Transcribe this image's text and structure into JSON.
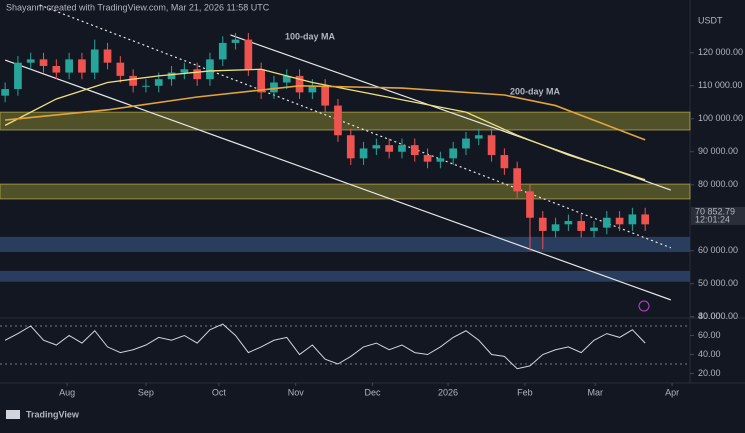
{
  "header": {
    "caption": "Shayanm created with TradingView.com, Mar 21, 2026 11:58 UTC",
    "brand": "TradingView"
  },
  "chart_data": [
    {
      "type": "candlestick",
      "currency": "USDT",
      "up_color": "#26a69a",
      "down_color": "#ef5350",
      "grid": false,
      "open": [
        107000,
        109000,
        117000,
        118000,
        116000,
        114000,
        118000,
        114000,
        121000,
        117000,
        113000,
        110000,
        110000,
        112000,
        114000,
        115000,
        112000,
        118000,
        123000,
        124000,
        115000,
        108000,
        111000,
        113000,
        108000,
        110000,
        104000,
        95000,
        88000,
        91000,
        92000,
        90000,
        92000,
        89000,
        87000,
        88000,
        91000,
        94000,
        95000,
        89000,
        85000,
        78000,
        70000,
        66000,
        68000,
        69000,
        66000,
        67000,
        70000,
        68000,
        71000
      ],
      "high": [
        111000,
        119000,
        120000,
        120000,
        118000,
        120000,
        120000,
        124000,
        123000,
        119000,
        115000,
        112000,
        114000,
        116000,
        117000,
        117000,
        120000,
        125000,
        126000,
        126000,
        117000,
        113000,
        115000,
        115000,
        112000,
        112000,
        106000,
        97000,
        93000,
        94000,
        94000,
        94000,
        94000,
        91000,
        90000,
        93000,
        96000,
        97000,
        97000,
        91000,
        87000,
        80000,
        72000,
        70000,
        71000,
        71000,
        69000,
        72000,
        72000,
        73000,
        73000
      ],
      "low": [
        105000,
        107000,
        115000,
        114000,
        112000,
        112000,
        112000,
        112000,
        115000,
        111000,
        108000,
        108000,
        108000,
        110000,
        112000,
        110000,
        110000,
        116000,
        121000,
        113000,
        106000,
        106000,
        109000,
        106000,
        106000,
        102000,
        93000,
        86000,
        86000,
        89000,
        88000,
        88000,
        87000,
        85000,
        85000,
        86000,
        89000,
        92000,
        87000,
        83000,
        76000,
        60000,
        60500,
        64000,
        66000,
        64000,
        64000,
        65000,
        66000,
        66000,
        66000
      ],
      "close": [
        109000,
        117000,
        118000,
        116000,
        114000,
        118000,
        114000,
        121000,
        117000,
        113000,
        110000,
        110000,
        112000,
        114000,
        115000,
        112000,
        118000,
        123000,
        124000,
        115000,
        108000,
        111000,
        113000,
        108000,
        110000,
        104000,
        95000,
        88000,
        91000,
        92000,
        90000,
        92000,
        89000,
        87000,
        88000,
        91000,
        94000,
        95000,
        89000,
        85000,
        78000,
        70000,
        66000,
        68000,
        69000,
        66000,
        67000,
        70000,
        68000,
        71000,
        68000
      ],
      "series": [
        {
          "name": "100-day MA",
          "color": "#efe07a",
          "x": [
            0,
            4,
            8,
            12,
            16,
            20,
            24,
            28,
            32,
            36,
            40,
            44,
            48,
            50
          ],
          "values": [
            98000,
            106000,
            111000,
            113000,
            114500,
            115000,
            111000,
            108000,
            105000,
            102000,
            95000,
            89000,
            84000,
            81500
          ]
        },
        {
          "name": "200-day MA",
          "color": "#e3a33a",
          "x": [
            0,
            8,
            15,
            23,
            31,
            39,
            43,
            50
          ],
          "values": [
            99600,
            102700,
            106600,
            110000,
            109300,
            107200,
            104000,
            93600
          ]
        }
      ],
      "zones": [
        {
          "from": 96600,
          "to": 102000,
          "color": "#5c5a2a"
        },
        {
          "from": 75700,
          "to": 80200,
          "color": "#5c5a2a"
        },
        {
          "from": 59600,
          "to": 64200,
          "color": "#2e4468"
        },
        {
          "from": 50600,
          "to": 53900,
          "color": "#2e4468"
        }
      ],
      "trendlines": [
        {
          "from": [
            17.6,
            125400
          ],
          "to": [
            52,
            78400
          ],
          "style": "solid"
        },
        {
          "from": [
            2.7,
            134500
          ],
          "to": [
            52,
            60900
          ],
          "style": "dotted"
        },
        {
          "from": [
            0,
            117800
          ],
          "to": [
            52,
            45100
          ],
          "style": "solid"
        }
      ],
      "price_label": {
        "value": 70852.79,
        "label": "70 852.79",
        "countdown": "12:01:24"
      },
      "xlim": [
        -0.4,
        53.5
      ],
      "ylim": [
        39000,
        136000
      ],
      "yticks": [
        {
          "value": 40000,
          "label": "40 000.00"
        },
        {
          "value": 50000,
          "label": "50 000.00"
        },
        {
          "value": 60000,
          "label": "60 000.00"
        },
        {
          "value": 80000,
          "label": "80 000.00"
        },
        {
          "value": 90000,
          "label": "90 000.00"
        },
        {
          "value": 100000,
          "label": "100 000.00"
        },
        {
          "value": 110000,
          "label": "110 000.00"
        },
        {
          "value": 120000,
          "label": "120 000.00"
        }
      ],
      "xticks": [
        {
          "value": 4.84,
          "label": "Aug"
        },
        {
          "value": 11.0,
          "label": "Sep"
        },
        {
          "value": 16.7,
          "label": "Oct"
        },
        {
          "value": 22.7,
          "label": "Nov"
        },
        {
          "value": 28.7,
          "label": "Dec"
        },
        {
          "value": 34.6,
          "label": "2026"
        },
        {
          "value": 40.6,
          "label": "Feb"
        },
        {
          "value": 46.1,
          "label": "Mar"
        },
        {
          "value": 52.1,
          "label": "Apr"
        }
      ]
    },
    {
      "type": "rsi",
      "color": "#d1d4dc",
      "values": [
        55,
        62,
        70,
        55,
        50,
        60,
        52,
        65,
        48,
        42,
        45,
        50,
        58,
        55,
        60,
        52,
        66,
        72,
        60,
        42,
        48,
        55,
        58,
        40,
        50,
        35,
        30,
        38,
        48,
        52,
        45,
        50,
        42,
        40,
        48,
        58,
        65,
        55,
        40,
        38,
        25,
        28,
        40,
        45,
        48,
        42,
        55,
        62,
        58,
        66,
        52
      ],
      "bands": [
        70,
        30
      ],
      "ylim": [
        10,
        90
      ],
      "yticks": [
        {
          "value": 20,
          "label": "20.00"
        },
        {
          "value": 40,
          "label": "40.00"
        },
        {
          "value": 60,
          "label": "60.00"
        },
        {
          "value": 80,
          "label": "80.00"
        }
      ]
    }
  ]
}
